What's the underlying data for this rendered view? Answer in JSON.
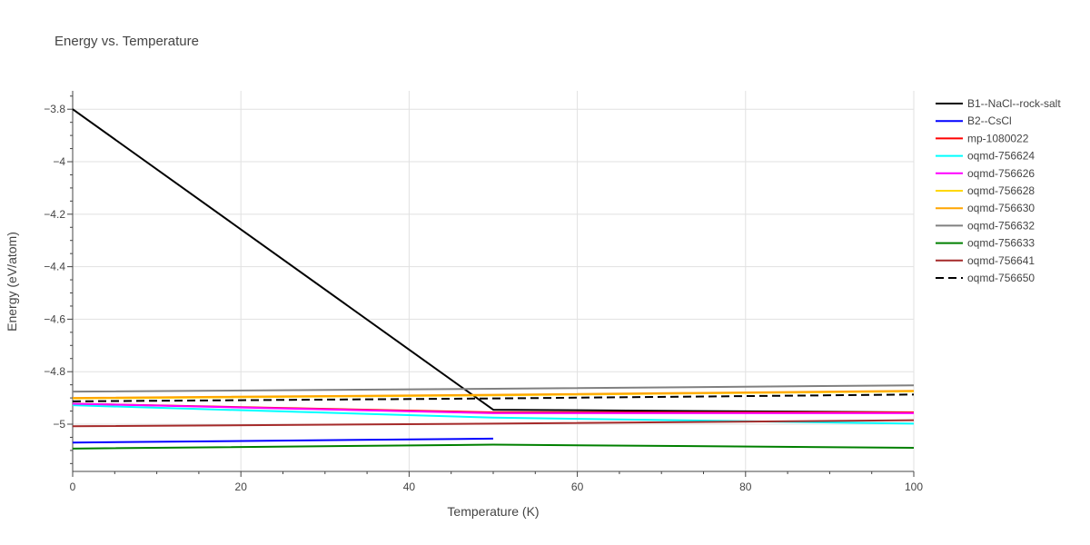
{
  "chart_data": {
    "type": "line",
    "title": "Energy vs. Temperature",
    "xlabel": "Temperature (K)",
    "ylabel": "Energy (eV/atom)",
    "xlim": [
      0,
      100
    ],
    "ylim": [
      -5.18,
      -3.73
    ],
    "x_ticks": [
      0,
      20,
      40,
      60,
      80,
      100
    ],
    "y_ticks": [
      -3.8,
      -4.0,
      -4.2,
      -4.4,
      -4.6,
      -4.8,
      -5.0
    ],
    "x_tick_labels": [
      "0",
      "20",
      "40",
      "60",
      "80",
      "100"
    ],
    "y_tick_labels": [
      "−3.8",
      "−4",
      "−4.2",
      "−4.4",
      "−4.6",
      "−4.8",
      "−5"
    ],
    "grid": true,
    "legend_position": "right",
    "series": [
      {
        "name": "B1--NaCl--rock-salt",
        "color": "#000000",
        "dash": "solid",
        "x": [
          0,
          50,
          100
        ],
        "y": [
          -3.8,
          -4.945,
          -4.955
        ]
      },
      {
        "name": "B2--CsCl",
        "color": "#0000ff",
        "dash": "solid",
        "x": [
          0,
          50
        ],
        "y": [
          -5.07,
          -5.055
        ]
      },
      {
        "name": "mp-1080022",
        "color": "#ff0000",
        "dash": "solid",
        "x": [
          0,
          50,
          100
        ],
        "y": [
          -4.922,
          -4.955,
          -4.955
        ]
      },
      {
        "name": "oqmd-756624",
        "color": "#00ffff",
        "dash": "solid",
        "x": [
          0,
          50,
          100
        ],
        "y": [
          -4.928,
          -4.975,
          -4.998
        ]
      },
      {
        "name": "oqmd-756626",
        "color": "#ff00ff",
        "dash": "solid",
        "x": [
          0,
          50,
          100
        ],
        "y": [
          -4.922,
          -4.958,
          -4.958
        ]
      },
      {
        "name": "oqmd-756628",
        "color": "#ffd700",
        "dash": "solid",
        "x": [
          0,
          50,
          100
        ],
        "y": [
          -4.902,
          -4.89,
          -4.875
        ]
      },
      {
        "name": "oqmd-756630",
        "color": "#ffa500",
        "dash": "solid",
        "x": [
          0,
          50,
          100
        ],
        "y": [
          -4.9,
          -4.888,
          -4.873
        ]
      },
      {
        "name": "oqmd-756632",
        "color": "#808080",
        "dash": "solid",
        "x": [
          0,
          50,
          100
        ],
        "y": [
          -4.876,
          -4.865,
          -4.852
        ]
      },
      {
        "name": "oqmd-756633",
        "color": "#008000",
        "dash": "solid",
        "x": [
          0,
          50,
          100
        ],
        "y": [
          -5.093,
          -5.078,
          -5.09
        ]
      },
      {
        "name": "oqmd-756641",
        "color": "#a52a2a",
        "dash": "solid",
        "x": [
          0,
          50,
          100
        ],
        "y": [
          -5.008,
          -4.998,
          -4.985
        ]
      },
      {
        "name": "oqmd-756650",
        "color": "#000000",
        "dash": "dash",
        "x": [
          0,
          50,
          100
        ],
        "y": [
          -4.913,
          -4.902,
          -4.887
        ]
      }
    ]
  }
}
